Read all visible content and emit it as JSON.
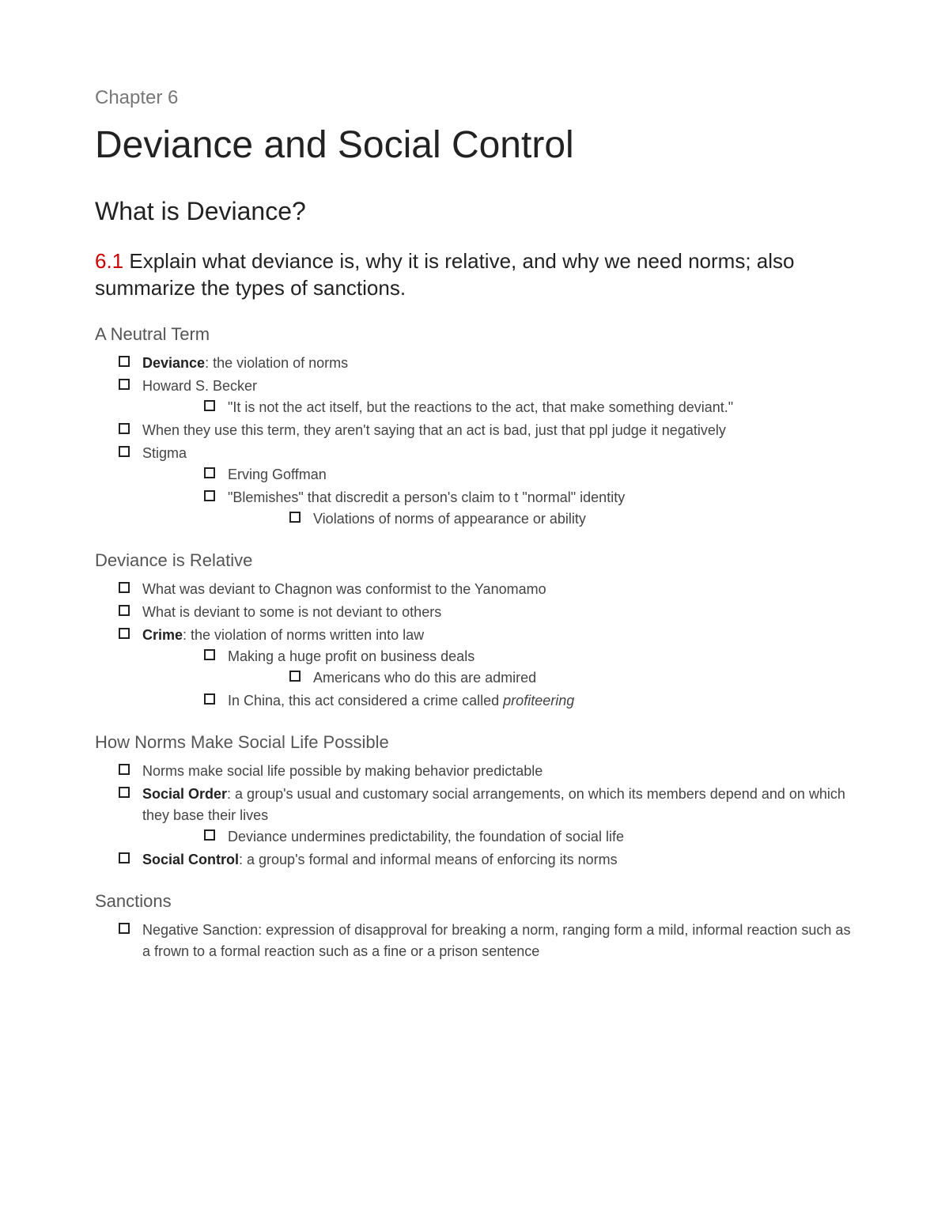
{
  "chapter_label": "Chapter 6",
  "title": "Deviance and Social Control",
  "h2": "What is Deviance?",
  "h3_num": "6.1",
  "h3_text": " Explain what deviance is, why it is relative, and why we need norms; also summarize the types of sanctions.",
  "sections": [
    {
      "heading": "A Neutral Term",
      "items": [
        {
          "bold": "Deviance",
          "text": ": the violation of norms"
        },
        {
          "text": "Howard S. Becker",
          "children": [
            {
              "text": "\"It is not the act itself, but the reactions to the act, that make something deviant.\""
            }
          ]
        },
        {
          "text": "When they use this term, they aren't saying that an act is bad, just that ppl judge it negatively"
        },
        {
          "text": "Stigma",
          "children": [
            {
              "text": "Erving Goffman"
            },
            {
              "text": "\"Blemishes\" that discredit a person's claim to t \"normal\" identity",
              "children": [
                {
                  "text": "Violations of norms of appearance or ability"
                }
              ]
            }
          ]
        }
      ]
    },
    {
      "heading": "Deviance is Relative",
      "items": [
        {
          "text": "What was deviant to Chagnon was conformist to the Yanomamo"
        },
        {
          "text": "What is deviant to some is not deviant to others"
        },
        {
          "bold": "Crime",
          "text": ": the violation of norms written into law",
          "children": [
            {
              "text": "Making a huge profit on business deals",
              "children": [
                {
                  "text": "Americans who do this are admired"
                }
              ]
            },
            {
              "text": "In China, this act considered a crime called ",
              "italic_tail": "profiteering"
            }
          ]
        }
      ]
    },
    {
      "heading": "How Norms Make Social Life Possible",
      "items": [
        {
          "text": "Norms make social life possible by making behavior predictable"
        },
        {
          "bold": "Social Order",
          "text": ": a group's usual and customary social arrangements, on which its members depend and on which they base their lives",
          "children": [
            {
              "text": "Deviance undermines predictability, the foundation of social life"
            }
          ]
        },
        {
          "bold": "Social Control",
          "text": ": a group's formal and informal means of enforcing its norms"
        }
      ]
    },
    {
      "heading": "Sanctions",
      "items": [
        {
          "text": "Negative Sanction: expression of disapproval for breaking a norm, ranging form a mild, informal reaction such as a frown to a formal reaction such as a fine or a prison sentence"
        }
      ]
    }
  ]
}
